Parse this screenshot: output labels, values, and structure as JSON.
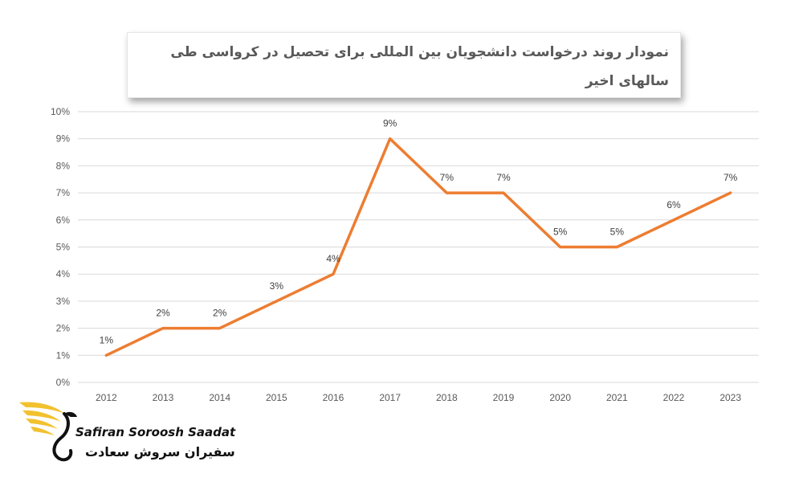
{
  "chart_data": {
    "type": "line",
    "title": "نمودار روند درخواست دانشجویان بین المللی برای تحصیل در کرواسی طی سالهای اخیر",
    "x": [
      "2012",
      "2013",
      "2014",
      "2015",
      "2016",
      "2017",
      "2018",
      "2019",
      "2020",
      "2021",
      "2022",
      "2023"
    ],
    "series": [
      {
        "values": [
          1,
          2,
          2,
          3,
          4,
          9,
          7,
          7,
          5,
          5,
          6,
          7
        ],
        "data_labels": [
          "1%",
          "2%",
          "2%",
          "3%",
          "4%",
          "9%",
          "7%",
          "7%",
          "5%",
          "5%",
          "6%",
          "7%"
        ],
        "color": "#ED7D31"
      }
    ],
    "ylim": [
      0,
      10
    ],
    "y_ticks": [
      "0%",
      "1%",
      "2%",
      "3%",
      "4%",
      "5%",
      "6%",
      "7%",
      "8%",
      "9%",
      "10%"
    ],
    "xlabel": "",
    "ylabel": "",
    "grid": true,
    "grid_color": "#d9d9d9"
  },
  "logo": {
    "name_en": "Safiran Soroosh Saadat",
    "name_fa": "سفیران سروش سعادت",
    "color": "#F2C12E"
  }
}
